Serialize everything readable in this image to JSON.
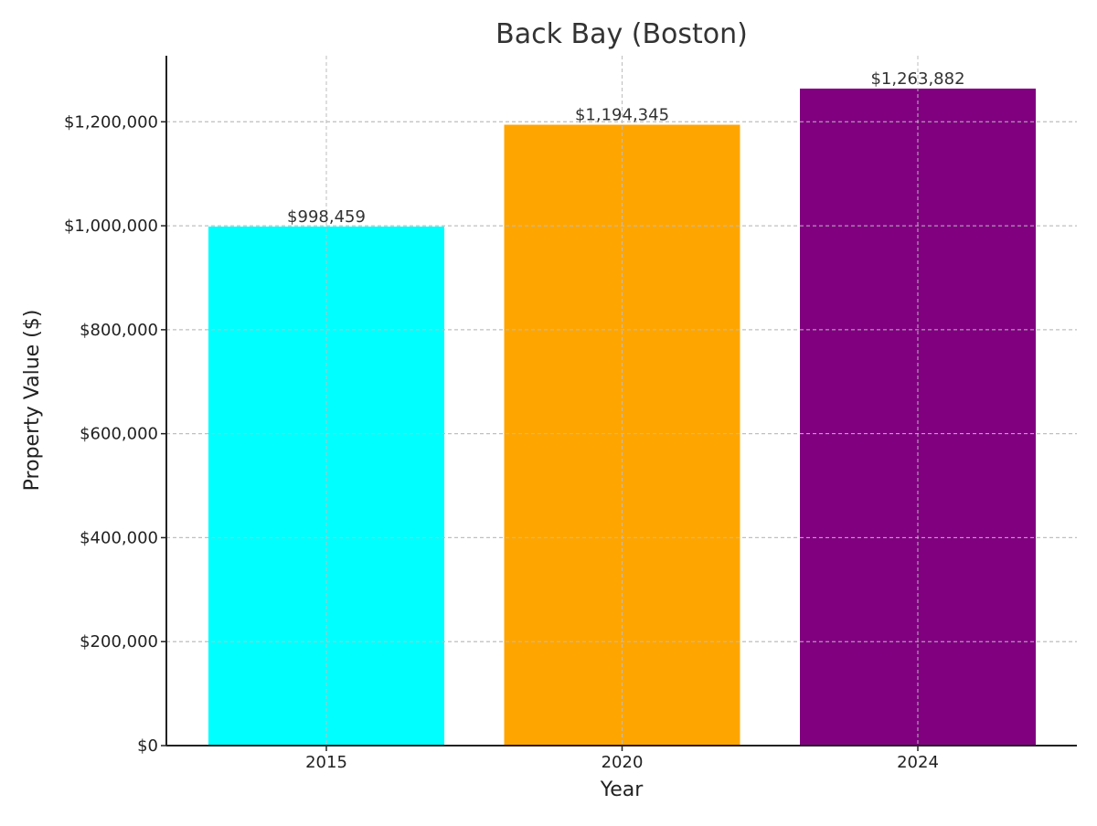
{
  "chart_data": {
    "type": "bar",
    "title": "Back Bay (Boston)",
    "xlabel": "Year",
    "ylabel": "Property Value ($)",
    "categories": [
      "2015",
      "2020",
      "2024"
    ],
    "values": [
      998459,
      1194345,
      1263882
    ],
    "value_labels": [
      "$998,459",
      "$1,194,345",
      "$1,263,882"
    ],
    "colors": [
      "#00ffff",
      "#ffa500",
      "#800080"
    ],
    "ylim": [
      0,
      1327076
    ],
    "yticks": [
      0,
      200000,
      400000,
      600000,
      800000,
      1000000,
      1200000
    ],
    "ytick_labels": [
      "$0",
      "$200,000",
      "$400,000",
      "$600,000",
      "$800,000",
      "$1,000,000",
      "$1,200,000"
    ],
    "grid": true,
    "grid_style": "dashed"
  }
}
